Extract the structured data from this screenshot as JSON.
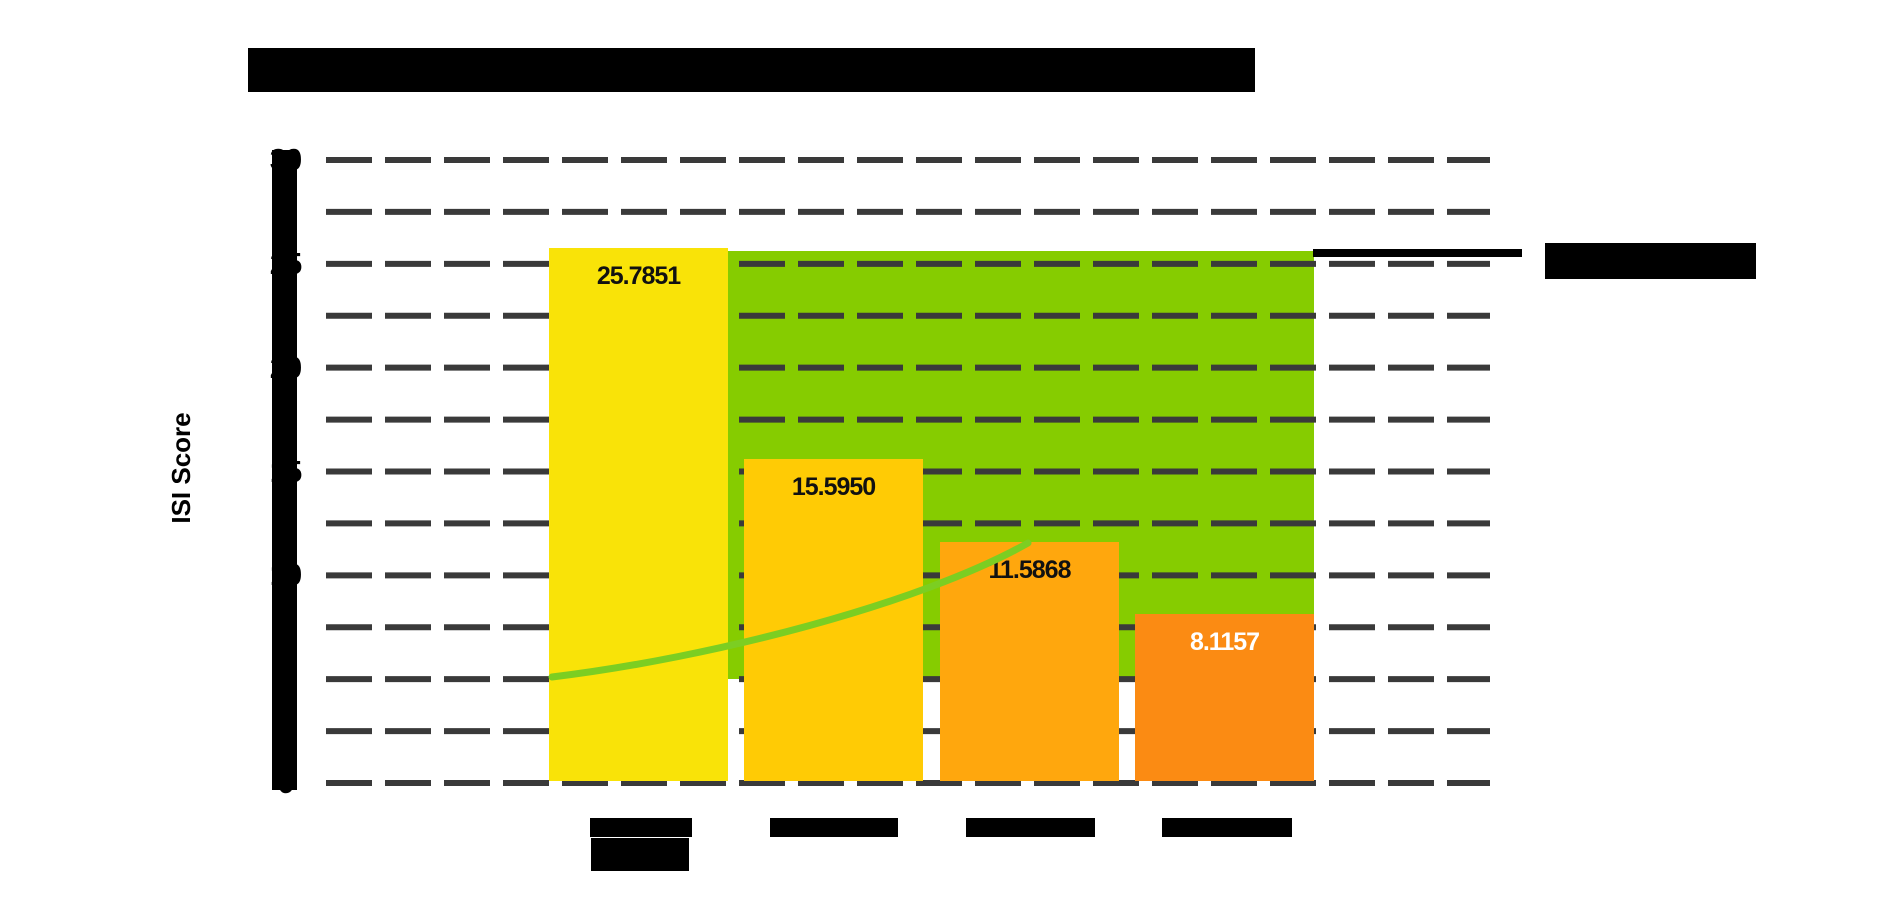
{
  "title": {
    "text_fragment": "T…S"
  },
  "annotation": {
    "text_fragment": "(…e)"
  },
  "y_axis": {
    "label": "ISI Score",
    "ticks": [
      "30",
      "25",
      "20",
      "15",
      "10",
      "5",
      "0"
    ]
  },
  "x_axis": {
    "tick_fragments": [
      "…S",
      "M…S",
      "M…S",
      "M…S"
    ],
    "first_tick_second_line": "…"
  },
  "chart_data": {
    "type": "bar",
    "title": "T…S (rendered as solid black block, ends in S)",
    "categories": [
      "…S",
      "M…S",
      "M…S",
      "M…S"
    ],
    "values": [
      25.7851,
      15.595,
      11.5868,
      8.1157
    ],
    "value_labels": [
      "25.7851",
      "15.5950",
      "11.5868",
      "8.1157"
    ],
    "value_label_colors": [
      "#111111",
      "#111111",
      "#111111",
      "#ffffff"
    ],
    "bar_colors": [
      "#F9E308",
      "#FFCB05",
      "#FFA70D",
      "#FB8B13"
    ],
    "xlabel": "",
    "ylabel": "ISI Score",
    "ylim": [
      0,
      30
    ],
    "ytick_step": 5,
    "gridline_step": 2.5,
    "grid": true,
    "gridline_color": "#3A3A3A",
    "background_color": "#FFFFFF",
    "axis_color": "#000000",
    "reference_band": {
      "color": "#86CC00",
      "value_range": [
        5.0,
        25.6
      ]
    },
    "trend_curve": {
      "color": "#7CCE22",
      "from_value": 5.1,
      "to_value": 11.59
    },
    "annotation": {
      "line_color": "#000000",
      "points_at_value": 25.6,
      "text_fragment": "(…e)"
    }
  }
}
